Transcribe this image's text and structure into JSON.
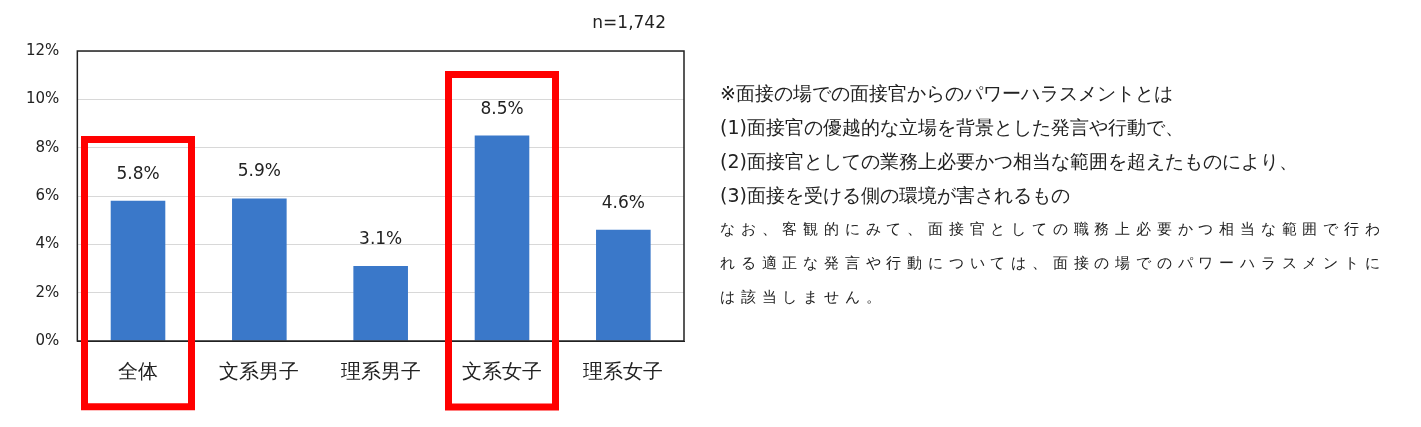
{
  "chart_data": {
    "type": "bar",
    "categories": [
      "全体",
      "文系男子",
      "理系男子",
      "文系女子",
      "理系女子"
    ],
    "values": [
      5.8,
      5.9,
      3.1,
      8.5,
      4.6
    ],
    "value_labels": [
      "5.8%",
      "5.9%",
      "3.1%",
      "8.5%",
      "4.6%"
    ],
    "color": "#3a78c9",
    "ylim": [
      0,
      12
    ],
    "yticks": [
      {
        "value": 0,
        "label": "0%"
      },
      {
        "value": 2,
        "label": "2%"
      },
      {
        "value": 4,
        "label": "4%"
      },
      {
        "value": 6,
        "label": "6%"
      },
      {
        "value": 8,
        "label": "8%"
      },
      {
        "value": 10,
        "label": "10%"
      },
      {
        "value": 12,
        "label": "12%"
      }
    ],
    "grid": "y",
    "annotations": [
      "n=1,742",
      "※面接の場での面接官からのパワーハラスメントとは",
      "(1)面接官の優越的な立場を背景とした発言や行動で、",
      "(2)面接官としての業務上必要かつ相当な範囲を超えたものにより、",
      "(3)面接を受ける側の環境が害されるもの",
      "なお、客観的にみて、面接官としての職務上必要かつ相当な範囲で行われる適正な発言や行動については、面接の場でのパワーハラスメントには該当しません。"
    ]
  }
}
